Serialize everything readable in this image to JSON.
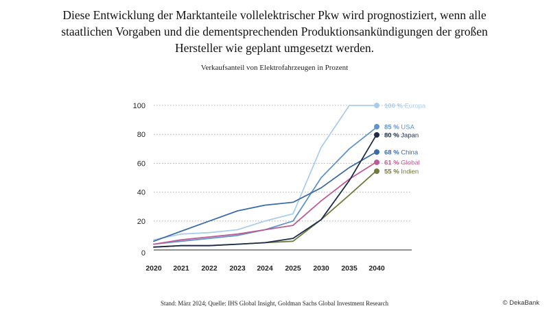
{
  "headline": "Diese Entwicklung der Marktanteile vollelektrischer Pkw wird prognostiziert, wenn alle staatlichen Vorgaben und die dementsprechenden Produktionsankündigungen der großen Hersteller wie geplant umgesetzt werden.",
  "source": "Stand: März 2024; Quelle: IHS Global Insight, Goldman Sachs Global Investment Research",
  "brand": "© DekaBank",
  "chart_data": {
    "type": "line",
    "title": "",
    "subtitle": "Verkaufsanteil von Elektrofahrzeugen in Prozent",
    "xlabel": "",
    "ylabel": "",
    "categories": [
      "2020",
      "2021",
      "2022",
      "2023",
      "2024",
      "2025",
      "2030",
      "2035",
      "2040"
    ],
    "ylim": [
      0,
      100
    ],
    "yticks": [
      "100",
      "80",
      "60",
      "40",
      "20",
      "0"
    ],
    "ytick_values": [
      100,
      80,
      60,
      40,
      20,
      0
    ],
    "grid": "horizontal dotted",
    "legend_placement": "end-of-line labels",
    "series": [
      {
        "name": "Europa",
        "end_label": "100 %",
        "color": "#a9cdec",
        "values": [
          7,
          11,
          12,
          14,
          20,
          25,
          71,
          100,
          100
        ]
      },
      {
        "name": "USA",
        "end_label": "85 %",
        "color": "#5f93cc",
        "values": [
          4,
          6,
          8,
          10,
          14,
          20,
          50,
          70,
          85
        ]
      },
      {
        "name": "Japan",
        "end_label": "80 %",
        "color": "#1c2c48",
        "values": [
          2,
          3,
          3,
          4,
          5,
          8,
          21,
          48,
          80
        ]
      },
      {
        "name": "China",
        "end_label": "68 %",
        "color": "#3c6aa8",
        "values": [
          6,
          13,
          20,
          27,
          31,
          33,
          43,
          57,
          68
        ]
      },
      {
        "name": "Global",
        "end_label": "61 %",
        "color": "#c05a93",
        "values": [
          4,
          7,
          9,
          11,
          14,
          17,
          34,
          49,
          61
        ]
      },
      {
        "name": "Indien",
        "end_label": "55 %",
        "color": "#6f7a3c",
        "values": [
          2,
          3,
          3,
          4,
          5,
          6,
          21,
          38,
          55
        ]
      }
    ]
  }
}
